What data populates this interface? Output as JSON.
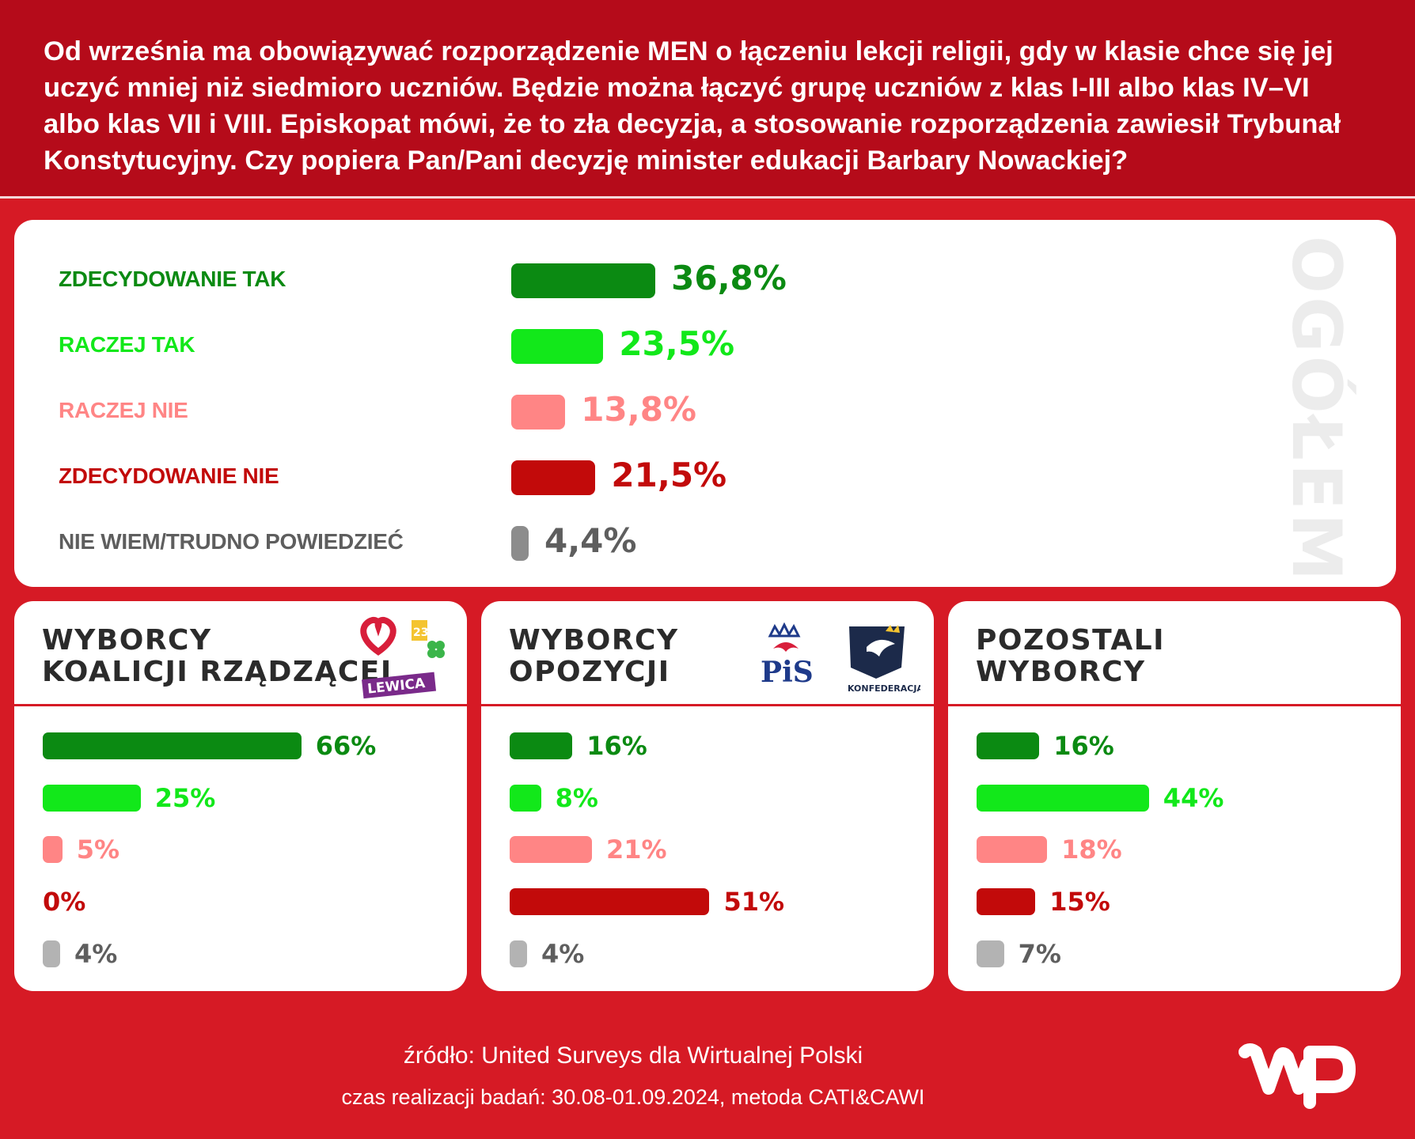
{
  "question": "Od września ma obowiązywać rozporządzenie MEN o łączeniu lekcji religii, gdy w klasie chce się jej\nuczyć mniej niż siedmioro uczniów. Będzie można łączyć grupę uczniów z klas I-III albo klas IV–VI\nalbo klas VII i VIII. Episkopat mówi, że to zła decyzja, a stosowanie rozporządzenia zawiesił Trybunał\nKonstytucyjny. Czy popiera Pan/Pani decyzję minister edukacji Barbary Nowackiej?",
  "colors": {
    "zdecydowanie_tak": "#0b8a12",
    "raczej_tak": "#12e81a",
    "raczej_nie": "#ff8585",
    "zdecydowanie_nie": "#c20a0a",
    "nie_wiem": "#8c8c8c",
    "nie_wiem_light": "#b3b3b3"
  },
  "logos": {
    "lewica_label": "LEWICA",
    "pis_label": "PiS",
    "konfederacja_label": "KONFEDERACJA"
  },
  "chart_data": [
    {
      "type": "bar",
      "vertical_label": "OGÓŁEM",
      "categories": [
        "ZDECYDOWANIE TAK",
        "RACZEJ TAK",
        "RACZEJ NIE",
        "ZDECYDOWANIE NIE",
        "NIE WIEM/TRUDNO POWIEDZIEĆ"
      ],
      "values": [
        36.8,
        23.5,
        13.8,
        21.5,
        4.4
      ],
      "value_labels": [
        "36,8%",
        "23,5%",
        "13,8%",
        "21,5%",
        "4,4%"
      ]
    },
    {
      "type": "bar",
      "title": "WYBORCY\nKOALICJI RZĄDZĄCEJ",
      "categories": [
        "ZDECYDOWANIE TAK",
        "RACZEJ TAK",
        "RACZEJ NIE",
        "ZDECYDOWANIE NIE",
        "NIE WIEM/TRUDNO POWIEDZIEĆ"
      ],
      "values": [
        66,
        25,
        5,
        0,
        4
      ],
      "value_labels": [
        "66%",
        "25%",
        "5%",
        "0%",
        "4%"
      ]
    },
    {
      "type": "bar",
      "title": "WYBORCY\nOPOZYCJI",
      "categories": [
        "ZDECYDOWANIE TAK",
        "RACZEJ TAK",
        "RACZEJ NIE",
        "ZDECYDOWANIE NIE",
        "NIE WIEM/TRUDNO POWIEDZIEĆ"
      ],
      "values": [
        16,
        8,
        21,
        51,
        4
      ],
      "value_labels": [
        "16%",
        "8%",
        "21%",
        "51%",
        "4%"
      ]
    },
    {
      "type": "bar",
      "title": "POZOSTALI\nWYBORCY",
      "categories": [
        "ZDECYDOWANIE TAK",
        "RACZEJ TAK",
        "RACZEJ NIE",
        "ZDECYDOWANIE NIE",
        "NIE WIEM/TRUDNO POWIEDZIEĆ"
      ],
      "values": [
        16,
        44,
        18,
        15,
        7
      ],
      "value_labels": [
        "16%",
        "44%",
        "18%",
        "15%",
        "7%"
      ]
    }
  ],
  "footer": {
    "source": "źródło: United Surveys dla Wirtualnej Polski",
    "period": "czas realizacji badań: 30.08-01.09.2024, metoda CATI&CAWI"
  }
}
